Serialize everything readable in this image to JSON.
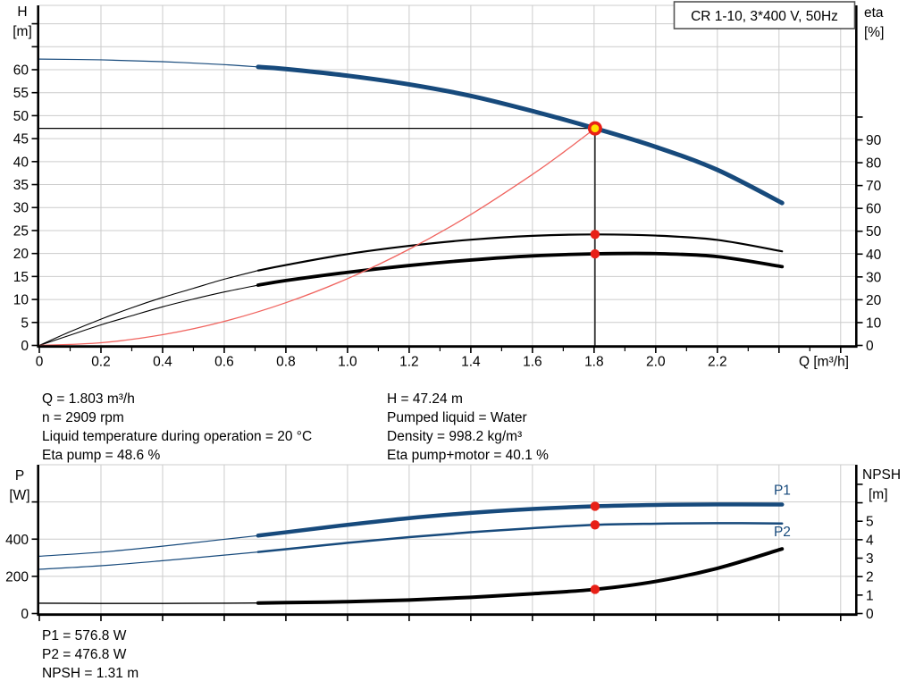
{
  "colors": {
    "pump_blue": "#174a7c",
    "system_red": "#f0645f",
    "marker_red": "#e82017",
    "marker_yellow": "#ffe000",
    "grid": "#cccccc",
    "axis": "#000000",
    "text": "#000000"
  },
  "info_top": {
    "left": [
      "Q = 1.803 m³/h",
      "n = 2909 rpm",
      "Liquid temperature during operation = 20 °C",
      "Eta pump = 48.6 %"
    ],
    "right": [
      "H = 47.24 m",
      "Pumped liquid = Water",
      "Density = 998.2 kg/m³",
      "Eta pump+motor = 40.1 %"
    ]
  },
  "info_bottom": [
    "P1 = 576.8 W",
    "P2 = 476.8 W",
    "NPSH = 1.31 m"
  ],
  "chart_data": [
    {
      "type": "line",
      "name": "qh-eta-chart",
      "title": "CR 1-10, 3*400 V, 50Hz",
      "x_axis": {
        "label": "Q [m³/h]",
        "range": [
          0,
          2.647
        ],
        "gridline_step": 0.2,
        "major_tick_step": 0.2,
        "minor_tick_step": 0.1,
        "tick_values": [
          0,
          0.2,
          0.4,
          0.6,
          0.8,
          1.0,
          1.2,
          1.4,
          1.6,
          1.8,
          2.0,
          2.2
        ],
        "tick_labels": [
          "0",
          "0.2",
          "0.4",
          "0.6",
          "0.8",
          "1.0",
          "1.2",
          "1.4",
          "1.6",
          "1.8",
          "2.0",
          "2.2"
        ]
      },
      "y_left": {
        "label": "H [m]",
        "range": [
          0,
          74
        ],
        "gridline_step": 5,
        "tick_values": [
          0,
          5,
          10,
          15,
          20,
          25,
          30,
          35,
          40,
          45,
          50,
          55,
          60
        ],
        "tick_labels": [
          "0",
          "5",
          "10",
          "15",
          "20",
          "25",
          "30",
          "35",
          "40",
          "45",
          "50",
          "55",
          "60"
        ],
        "extra_ticks": [
          65,
          70
        ]
      },
      "y_right": {
        "label": "eta [%]",
        "range": [
          0,
          148.9
        ],
        "tick_values": [
          0,
          10,
          20,
          30,
          40,
          50,
          60,
          70,
          80,
          90
        ],
        "tick_labels": [
          "0",
          "10",
          "20",
          "30",
          "40",
          "50",
          "60",
          "70",
          "80",
          "90"
        ],
        "extra_ticks": [
          100
        ]
      },
      "series": [
        {
          "name": "pump-curve",
          "axis": "left",
          "color": "#174a7c",
          "thin_width": 1.2,
          "width": 5,
          "split_at": 0.71,
          "points": [
            [
              0,
              62.3
            ],
            [
              0.2,
              62.15
            ],
            [
              0.4,
              61.75
            ],
            [
              0.6,
              61.1
            ],
            [
              0.71,
              60.6
            ],
            [
              0.8,
              60.15
            ],
            [
              1.0,
              58.7
            ],
            [
              1.2,
              56.8
            ],
            [
              1.4,
              54.3
            ],
            [
              1.6,
              51.0
            ],
            [
              1.803,
              47.24
            ],
            [
              2.0,
              43.2
            ],
            [
              2.2,
              38.2
            ],
            [
              2.41,
              31.0
            ]
          ]
        },
        {
          "name": "eta-pump-curve",
          "axis": "right",
          "color": "#000000",
          "thin_width": 1.1,
          "width": 2.2,
          "split_at": 0.71,
          "points": [
            [
              0,
              0
            ],
            [
              0.1,
              6
            ],
            [
              0.2,
              11.5
            ],
            [
              0.3,
              16.5
            ],
            [
              0.4,
              21
            ],
            [
              0.5,
              25
            ],
            [
              0.6,
              29
            ],
            [
              0.71,
              32.8
            ],
            [
              0.8,
              35.2
            ],
            [
              1.0,
              40
            ],
            [
              1.2,
              43.6
            ],
            [
              1.4,
              46.3
            ],
            [
              1.6,
              48
            ],
            [
              1.803,
              48.6
            ],
            [
              2.0,
              48.1
            ],
            [
              2.2,
              46.2
            ],
            [
              2.41,
              41.2
            ]
          ]
        },
        {
          "name": "eta-pump-motor-curve",
          "axis": "right",
          "color": "#000000",
          "thin_width": 1.1,
          "width": 3.8,
          "split_at": 0.71,
          "points": [
            [
              0,
              0
            ],
            [
              0.1,
              4.5
            ],
            [
              0.2,
              9
            ],
            [
              0.3,
              13
            ],
            [
              0.4,
              16.9
            ],
            [
              0.5,
              20.3
            ],
            [
              0.6,
              23.4
            ],
            [
              0.71,
              26.4
            ],
            [
              0.8,
              28.4
            ],
            [
              1.0,
              32
            ],
            [
              1.2,
              35
            ],
            [
              1.4,
              37.4
            ],
            [
              1.6,
              39.2
            ],
            [
              1.803,
              40.1
            ],
            [
              2.0,
              40.2
            ],
            [
              2.2,
              38.9
            ],
            [
              2.41,
              34.5
            ]
          ]
        },
        {
          "name": "system-curve",
          "axis": "left",
          "color": "#f0645f",
          "width": 1.3,
          "points": [
            [
              0,
              0
            ],
            [
              0.2,
              0.58
            ],
            [
              0.4,
              2.33
            ],
            [
              0.6,
              5.23
            ],
            [
              0.8,
              9.3
            ],
            [
              1.0,
              14.53
            ],
            [
              1.2,
              20.93
            ],
            [
              1.4,
              28.48
            ],
            [
              1.6,
              37.2
            ],
            [
              1.7,
              42.0
            ],
            [
              1.803,
              47.24
            ]
          ]
        }
      ],
      "operating_point": {
        "q": 1.803,
        "h": 47.24,
        "crosshair": true
      },
      "markers": [
        {
          "name": "eta-pump-point",
          "q": 1.803,
          "value": 48.6,
          "axis": "right"
        },
        {
          "name": "eta-pump-motor-point",
          "q": 1.803,
          "value": 40.1,
          "axis": "right"
        }
      ]
    },
    {
      "type": "line",
      "name": "power-npsh-chart",
      "x_axis": {
        "range": [
          0,
          2.647
        ],
        "gridline_step": 0.2,
        "major_tick_step": 0.2,
        "tick_values": [],
        "tick_labels": []
      },
      "y_left": {
        "label": "P [W]",
        "range": [
          0,
          800
        ],
        "gridline_step": 200,
        "tick_values": [
          0,
          200,
          400
        ],
        "tick_labels": [
          "0",
          "200",
          "400"
        ],
        "extra_ticks": [
          600
        ]
      },
      "y_right": {
        "label": "NPSH [m]",
        "range": [
          0,
          8.06
        ],
        "tick_values": [
          0,
          1,
          2,
          3,
          4,
          5
        ],
        "tick_labels": [
          "0",
          "1",
          "2",
          "3",
          "4",
          "5"
        ],
        "extra_ticks": [
          6,
          7
        ]
      },
      "series": [
        {
          "name": "p1-curve",
          "axis": "left",
          "color": "#174a7c",
          "thin_width": 1.2,
          "width": 4.5,
          "split_at": 0.71,
          "points": [
            [
              0,
              308
            ],
            [
              0.2,
              330
            ],
            [
              0.4,
              362
            ],
            [
              0.6,
              399
            ],
            [
              0.71,
              419
            ],
            [
              0.8,
              437
            ],
            [
              1.0,
              477
            ],
            [
              1.2,
              513
            ],
            [
              1.4,
              541
            ],
            [
              1.6,
              562
            ],
            [
              1.803,
              576.8
            ],
            [
              2.0,
              584
            ],
            [
              2.2,
              587
            ],
            [
              2.41,
              586
            ]
          ]
        },
        {
          "name": "p2-curve",
          "axis": "left",
          "color": "#174a7c",
          "thin_width": 1.2,
          "width": 2.5,
          "split_at": 0.71,
          "points": [
            [
              0,
              238
            ],
            [
              0.2,
              257
            ],
            [
              0.4,
              284
            ],
            [
              0.6,
              314
            ],
            [
              0.71,
              331
            ],
            [
              0.8,
              346
            ],
            [
              1.0,
              380
            ],
            [
              1.2,
              411
            ],
            [
              1.4,
              437
            ],
            [
              1.6,
              459
            ],
            [
              1.803,
              476.8
            ],
            [
              2.0,
              483
            ],
            [
              2.2,
              486
            ],
            [
              2.41,
              484
            ]
          ]
        },
        {
          "name": "npsh-curve",
          "axis": "right",
          "color": "#000000",
          "thin_width": 1.4,
          "width": 4,
          "split_at": 0.71,
          "points": [
            [
              0,
              0.56
            ],
            [
              0.2,
              0.55
            ],
            [
              0.4,
              0.55
            ],
            [
              0.6,
              0.56
            ],
            [
              0.71,
              0.57
            ],
            [
              0.8,
              0.59
            ],
            [
              1.0,
              0.64
            ],
            [
              1.2,
              0.73
            ],
            [
              1.4,
              0.88
            ],
            [
              1.6,
              1.07
            ],
            [
              1.803,
              1.31
            ],
            [
              2.0,
              1.74
            ],
            [
              2.2,
              2.45
            ],
            [
              2.41,
              3.5
            ]
          ]
        }
      ],
      "annotations": [
        {
          "text": "P1",
          "q": 2.383,
          "value": 640,
          "axis": "left",
          "color": "#174a7c"
        },
        {
          "text": "P2",
          "q": 2.383,
          "value": 415,
          "axis": "left",
          "color": "#174a7c"
        }
      ],
      "markers": [
        {
          "name": "p1-point",
          "q": 1.803,
          "value": 576.8,
          "axis": "left"
        },
        {
          "name": "p2-point",
          "q": 1.803,
          "value": 476.8,
          "axis": "left"
        },
        {
          "name": "npsh-point",
          "q": 1.803,
          "value": 1.31,
          "axis": "right"
        }
      ]
    }
  ]
}
